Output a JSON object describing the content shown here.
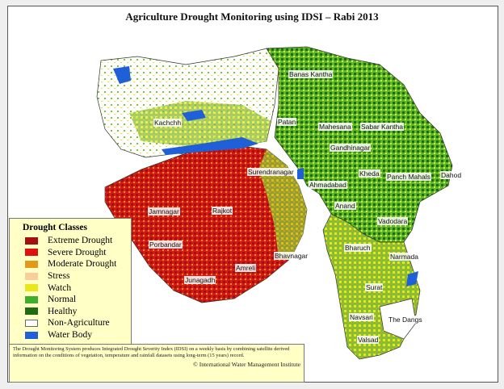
{
  "title": "Agriculture Drought Monitoring using IDSI – Rabi 2013",
  "legend": {
    "title": "Drought Classes",
    "items": [
      {
        "label": "Extreme Drought",
        "color": "#a50f0f"
      },
      {
        "label": "Severe Drought",
        "color": "#e01010"
      },
      {
        "label": "Moderate Drought",
        "color": "#e39a1a"
      },
      {
        "label": "Stress",
        "color": "#f8cf9a"
      },
      {
        "label": "Watch",
        "color": "#e8e818"
      },
      {
        "label": "Normal",
        "color": "#3fae2a"
      },
      {
        "label": "Healthy",
        "color": "#1d6b12"
      },
      {
        "label": "Non-Agriculture",
        "color": "#ffffff"
      },
      {
        "label": "Water Body",
        "color": "#1f5fd8"
      }
    ]
  },
  "districts": [
    "Banas Kantha",
    "Patan",
    "Kachchh",
    "Mahesana",
    "Sabar Kantha",
    "Gandhinagar",
    "Kheda",
    "Panch Mahals",
    "Dahod",
    "Surendranagar",
    "Ahmadabad",
    "Anand",
    "Vadodara",
    "Jamnagar",
    "Rajkot",
    "Porbandar",
    "Bhavnagar",
    "Amreli",
    "Junagadh",
    "Bharuch",
    "Narmada",
    "Surat",
    "Navsari",
    "The Dangs",
    "Valsad"
  ],
  "footer": {
    "description": "The Drought Monitoring System produces Integrated Drought Severity Index (IDSI) on a weekly basis by combining satellite derived information on the conditions of vegetation, temperature and rainfall datasets using long-term (15 years) record.",
    "credit": "© International Water Management Institute"
  }
}
